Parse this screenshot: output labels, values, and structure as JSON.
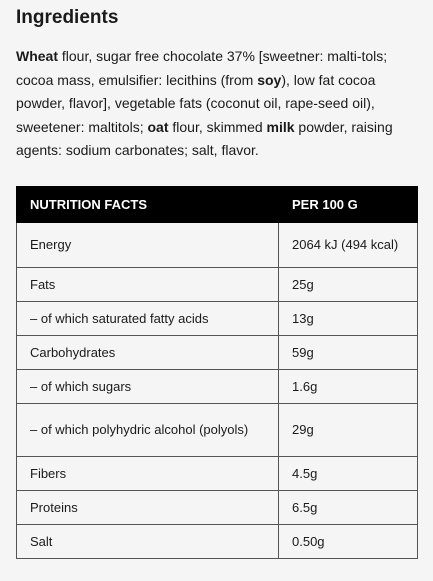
{
  "heading": "Ingredients",
  "ingredients": [
    {
      "t": "Wheat",
      "b": true
    },
    {
      "t": " flour, sugar free chocolate 37% [sweetner: malti-tols; cocoa mass, emulsifier: lecithins (from ",
      "b": false
    },
    {
      "t": "soy",
      "b": true
    },
    {
      "t": "), low fat cocoa powder, flavor], vegetable fats (coconut oil, rape-seed oil), sweetener: maltitols; ",
      "b": false
    },
    {
      "t": "oat",
      "b": true
    },
    {
      "t": " flour, skimmed ",
      "b": false
    },
    {
      "t": "milk",
      "b": true
    },
    {
      "t": " powder, raising agents: sodium carbonates; salt, flavor.",
      "b": false
    }
  ],
  "table": {
    "headers": [
      "NUTRITION FACTS",
      "PER 100 G"
    ],
    "rows": [
      {
        "label": "Energy",
        "value": "2064 kJ (494 kcal)"
      },
      {
        "label": "Fats",
        "value": "25g"
      },
      {
        "label": "– of which saturated fatty acids",
        "value": "13g"
      },
      {
        "label": "Carbohydrates",
        "value": "59g"
      },
      {
        "label": "– of which sugars",
        "value": "1.6g"
      },
      {
        "label": "– of which polyhydric alcohol (polyols)",
        "value": "29g"
      },
      {
        "label": "Fibers",
        "value": "4.5g"
      },
      {
        "label": "Proteins",
        "value": "6.5g"
      },
      {
        "label": "Salt",
        "value": "0.50g"
      }
    ]
  }
}
